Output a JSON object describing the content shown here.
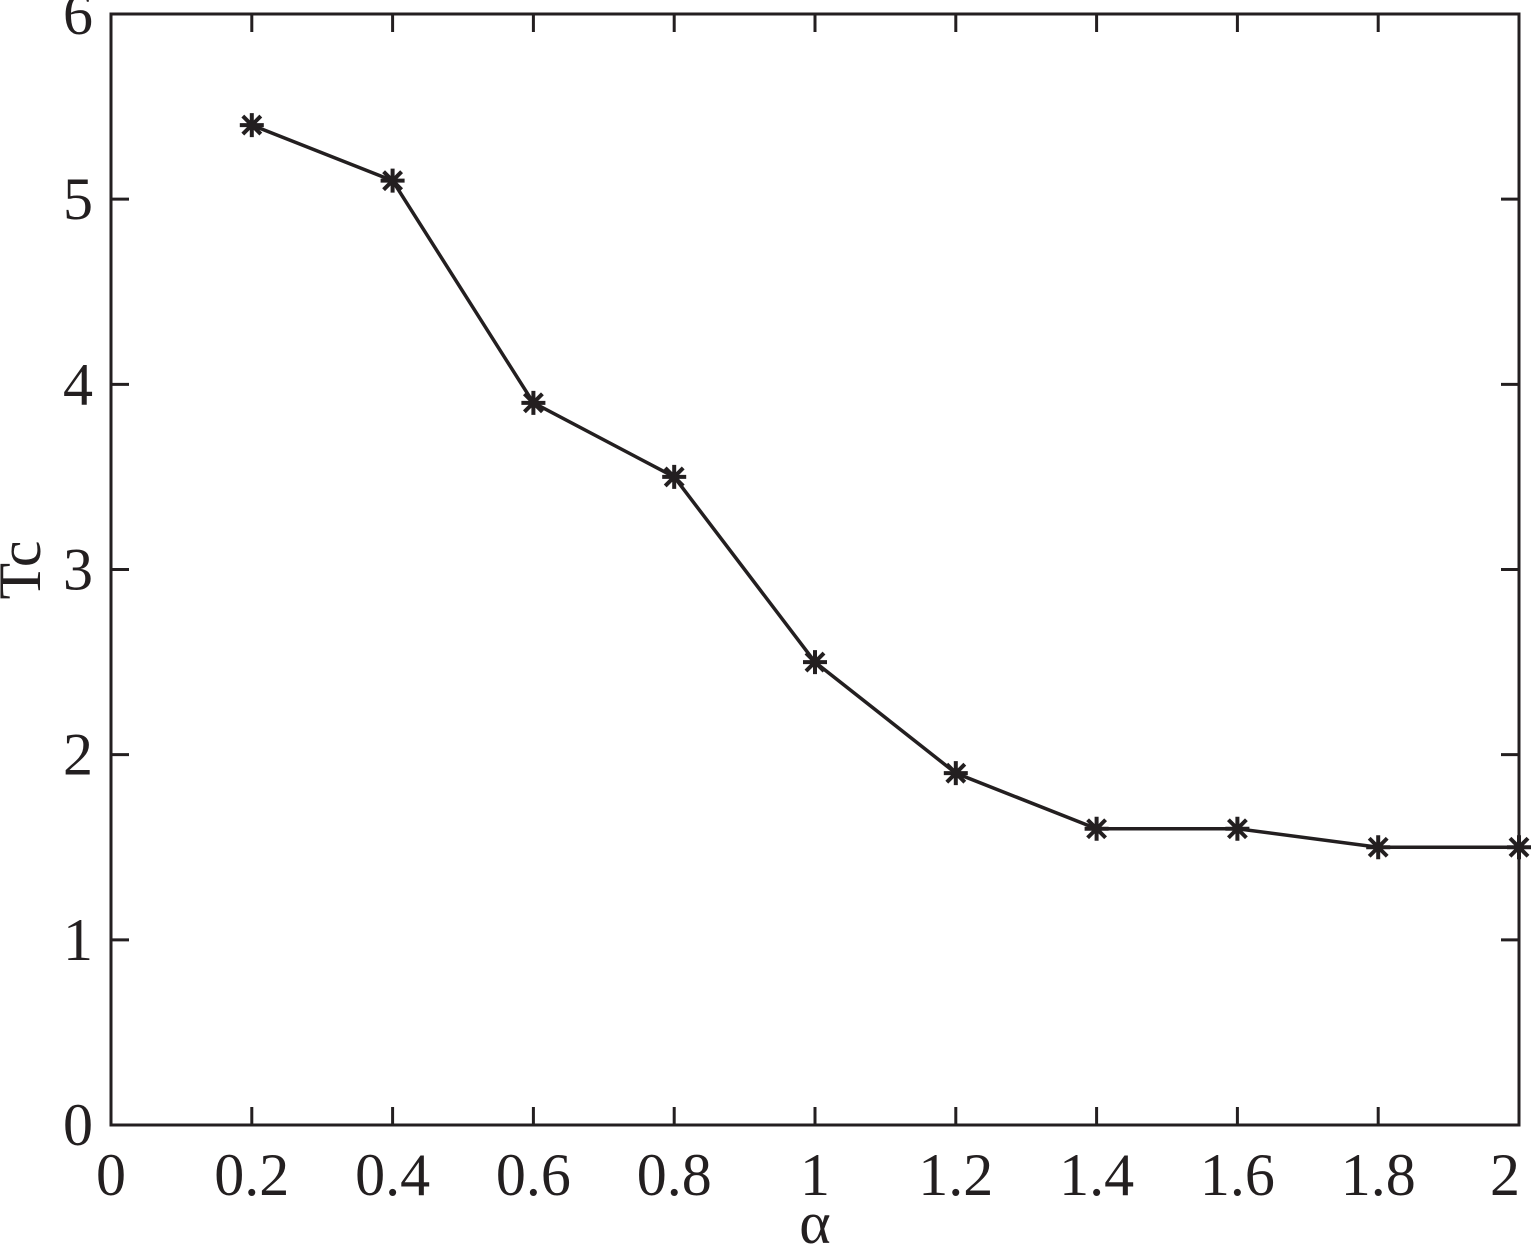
{
  "chart_data": {
    "type": "line",
    "x_label": "α",
    "y_label": "Tc",
    "x": [
      0.2,
      0.4,
      0.6,
      0.8,
      1,
      1.2,
      1.4,
      1.6,
      1.8,
      2
    ],
    "values": [
      5.4,
      5.1,
      3.9,
      3.5,
      2.5,
      1.9,
      1.6,
      1.6,
      1.5,
      1.5
    ],
    "color": "#231f20",
    "marker": "asterisk",
    "xlim": [
      0,
      2
    ],
    "xticks": [
      0,
      0.2,
      0.4,
      0.6,
      0.8,
      1,
      1.2,
      1.4,
      1.6,
      1.8,
      2
    ],
    "ylim": [
      0,
      6
    ],
    "yticks": [
      0,
      1,
      2,
      3,
      4,
      5,
      6
    ]
  }
}
